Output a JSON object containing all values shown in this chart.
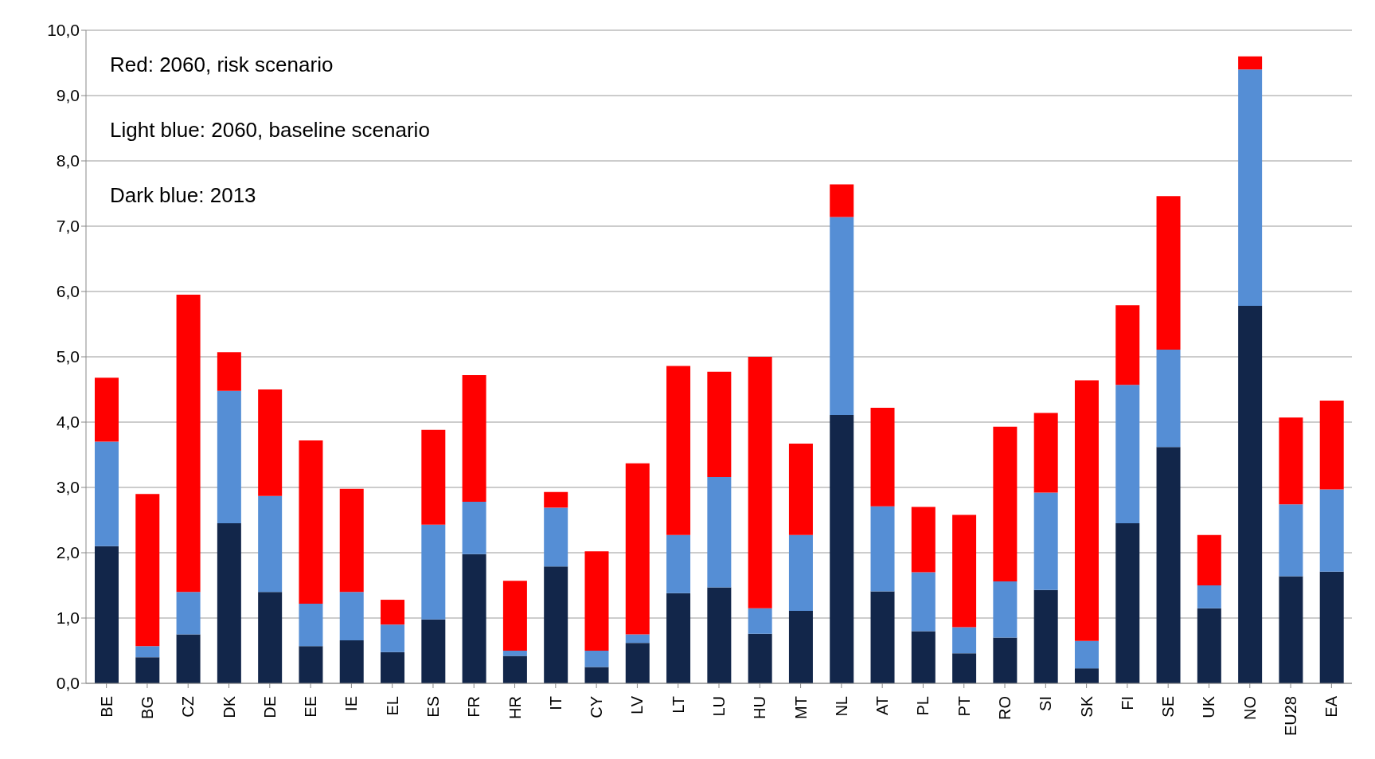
{
  "chart_data": {
    "type": "bar",
    "stacked": true,
    "categories": [
      "BE",
      "BG",
      "CZ",
      "DK",
      "DE",
      "EE",
      "IE",
      "EL",
      "ES",
      "FR",
      "HR",
      "IT",
      "CY",
      "LV",
      "LT",
      "LU",
      "HU",
      "MT",
      "NL",
      "AT",
      "PL",
      "PT",
      "RO",
      "SI",
      "SK",
      "FI",
      "SE",
      "UK",
      "NO",
      "EU28",
      "EA"
    ],
    "series": [
      {
        "color": "#12264a",
        "values": [
          2.1,
          0.4,
          0.75,
          2.45,
          1.4,
          0.57,
          0.66,
          0.48,
          0.98,
          1.98,
          0.42,
          1.79,
          0.25,
          0.62,
          1.38,
          1.47,
          0.76,
          1.11,
          4.11,
          1.41,
          0.8,
          0.46,
          0.7,
          1.43,
          0.23,
          2.45,
          3.62,
          1.15,
          5.78,
          1.64,
          1.71
        ]
      },
      {
        "color": "#558ed5",
        "values": [
          1.6,
          0.17,
          0.65,
          2.03,
          1.47,
          0.65,
          0.74,
          0.42,
          1.45,
          0.8,
          0.08,
          0.9,
          0.25,
          0.13,
          0.89,
          1.69,
          0.39,
          1.16,
          3.03,
          1.3,
          0.9,
          0.4,
          0.86,
          1.49,
          0.42,
          2.12,
          1.49,
          0.35,
          3.62,
          1.1,
          1.26
        ]
      },
      {
        "color": "#ff0000",
        "values": [
          0.98,
          2.33,
          4.55,
          0.59,
          1.63,
          2.5,
          1.58,
          0.38,
          1.45,
          1.94,
          1.07,
          0.24,
          1.52,
          2.62,
          2.59,
          1.61,
          3.85,
          1.4,
          0.5,
          1.51,
          1.0,
          1.72,
          2.37,
          1.22,
          3.99,
          1.22,
          2.35,
          0.77,
          0.2,
          1.33,
          1.36
        ]
      }
    ],
    "ylim": [
      0,
      10
    ],
    "yticks": [
      {
        "value": 0,
        "label": "0,0"
      },
      {
        "value": 1,
        "label": "1,0"
      },
      {
        "value": 2,
        "label": "2,0"
      },
      {
        "value": 3,
        "label": "3,0"
      },
      {
        "value": 4,
        "label": "4,0"
      },
      {
        "value": 5,
        "label": "5,0"
      },
      {
        "value": 6,
        "label": "6,0"
      },
      {
        "value": 7,
        "label": "7,0"
      },
      {
        "value": 8,
        "label": "8,0"
      },
      {
        "value": 9,
        "label": "9,0"
      },
      {
        "value": 10,
        "label": "10,0"
      }
    ],
    "grid": "y",
    "annotations": [
      "Red: 2060, risk scenario",
      "Light blue: 2060, baseline scenario",
      "Dark blue: 2013"
    ]
  }
}
